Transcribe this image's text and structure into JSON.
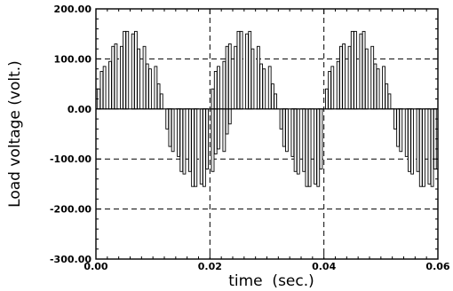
{
  "chart_data": {
    "type": "bar",
    "ylabel": "Load voltage (volt.)",
    "xlabel": "time  (sec.)",
    "xlim": [
      0.0,
      0.06
    ],
    "ylim": [
      -300.0,
      200.0
    ],
    "x_ticks": [
      0.0,
      0.02,
      0.04,
      0.06
    ],
    "x_tick_labels": [
      "0.00",
      "0.02",
      "0.04",
      "0.06"
    ],
    "y_ticks": [
      -300.0,
      -200.0,
      -100.0,
      0.0,
      100.0,
      200.0
    ],
    "y_tick_labels": [
      "-300.00",
      "-200.00",
      "-100.00",
      "0.00",
      "100.00",
      "200.00"
    ],
    "grid": true,
    "grid_style": "dashed",
    "series": [
      {
        "pulse_width_s": 0.00045,
        "pulses": [
          {
            "t": 0.0005,
            "v": 40
          },
          {
            "t": 0.001,
            "v": 75
          },
          {
            "t": 0.0015,
            "v": 85
          },
          {
            "t": 0.0025,
            "v": 95
          },
          {
            "t": 0.003,
            "v": 125
          },
          {
            "t": 0.0035,
            "v": 130
          },
          {
            "t": 0.0045,
            "v": 125
          },
          {
            "t": 0.005,
            "v": 155
          },
          {
            "t": 0.0055,
            "v": 155
          },
          {
            "t": 0.0065,
            "v": 150
          },
          {
            "t": 0.007,
            "v": 155
          },
          {
            "t": 0.0075,
            "v": 120
          },
          {
            "t": 0.0085,
            "v": 125
          },
          {
            "t": 0.009,
            "v": 90
          },
          {
            "t": 0.0095,
            "v": 80
          },
          {
            "t": 0.0105,
            "v": 85
          },
          {
            "t": 0.011,
            "v": 50
          },
          {
            "t": 0.0115,
            "v": 30
          },
          {
            "t": 0.0125,
            "v": -40
          },
          {
            "t": 0.013,
            "v": -75
          },
          {
            "t": 0.0135,
            "v": -85
          },
          {
            "t": 0.0145,
            "v": -95
          },
          {
            "t": 0.015,
            "v": -125
          },
          {
            "t": 0.0155,
            "v": -130
          },
          {
            "t": 0.0165,
            "v": -125
          },
          {
            "t": 0.017,
            "v": -155
          },
          {
            "t": 0.0175,
            "v": -155
          },
          {
            "t": 0.0185,
            "v": -150
          },
          {
            "t": 0.019,
            "v": -155
          },
          {
            "t": 0.0195,
            "v": -120
          },
          {
            "t": 0.0205,
            "v": -125
          },
          {
            "t": 0.021,
            "v": -90
          },
          {
            "t": 0.0215,
            "v": -80
          },
          {
            "t": 0.0225,
            "v": -85
          },
          {
            "t": 0.023,
            "v": -50
          },
          {
            "t": 0.0235,
            "v": -30
          },
          {
            "t": 0.0205,
            "v": 40
          },
          {
            "t": 0.021,
            "v": 75
          },
          {
            "t": 0.0215,
            "v": 85
          },
          {
            "t": 0.0225,
            "v": 95
          },
          {
            "t": 0.023,
            "v": 125
          },
          {
            "t": 0.0235,
            "v": 130
          },
          {
            "t": 0.0245,
            "v": 125
          },
          {
            "t": 0.025,
            "v": 155
          },
          {
            "t": 0.0255,
            "v": 155
          },
          {
            "t": 0.0265,
            "v": 150
          },
          {
            "t": 0.027,
            "v": 155
          },
          {
            "t": 0.0275,
            "v": 120
          },
          {
            "t": 0.0285,
            "v": 125
          },
          {
            "t": 0.029,
            "v": 90
          },
          {
            "t": 0.0295,
            "v": 80
          },
          {
            "t": 0.0305,
            "v": 85
          },
          {
            "t": 0.031,
            "v": 50
          },
          {
            "t": 0.0315,
            "v": 30
          },
          {
            "t": 0.0325,
            "v": -40
          },
          {
            "t": 0.033,
            "v": -75
          },
          {
            "t": 0.0335,
            "v": -85
          },
          {
            "t": 0.0345,
            "v": -95
          },
          {
            "t": 0.035,
            "v": -125
          },
          {
            "t": 0.0355,
            "v": -130
          },
          {
            "t": 0.0365,
            "v": -125
          },
          {
            "t": 0.037,
            "v": -155
          },
          {
            "t": 0.0375,
            "v": -155
          },
          {
            "t": 0.0385,
            "v": -150
          },
          {
            "t": 0.039,
            "v": -155
          },
          {
            "t": 0.0395,
            "v": -120
          },
          {
            "t": 0.0405,
            "v": 40
          },
          {
            "t": 0.041,
            "v": 75
          },
          {
            "t": 0.0415,
            "v": 85
          },
          {
            "t": 0.0425,
            "v": 95
          },
          {
            "t": 0.043,
            "v": 125
          },
          {
            "t": 0.0435,
            "v": 130
          },
          {
            "t": 0.0445,
            "v": 125
          },
          {
            "t": 0.045,
            "v": 155
          },
          {
            "t": 0.0455,
            "v": 155
          },
          {
            "t": 0.0465,
            "v": 150
          },
          {
            "t": 0.047,
            "v": 155
          },
          {
            "t": 0.0475,
            "v": 120
          },
          {
            "t": 0.0485,
            "v": 125
          },
          {
            "t": 0.049,
            "v": 90
          },
          {
            "t": 0.0495,
            "v": 80
          },
          {
            "t": 0.0505,
            "v": 85
          },
          {
            "t": 0.051,
            "v": 50
          },
          {
            "t": 0.0515,
            "v": 30
          },
          {
            "t": 0.0525,
            "v": -40
          },
          {
            "t": 0.053,
            "v": -75
          },
          {
            "t": 0.0535,
            "v": -85
          },
          {
            "t": 0.0545,
            "v": -95
          },
          {
            "t": 0.055,
            "v": -125
          },
          {
            "t": 0.0555,
            "v": -130
          },
          {
            "t": 0.0565,
            "v": -125
          },
          {
            "t": 0.057,
            "v": -155
          },
          {
            "t": 0.0575,
            "v": -155
          },
          {
            "t": 0.0585,
            "v": -150
          },
          {
            "t": 0.059,
            "v": -155
          },
          {
            "t": 0.0595,
            "v": -120
          }
        ]
      }
    ]
  }
}
